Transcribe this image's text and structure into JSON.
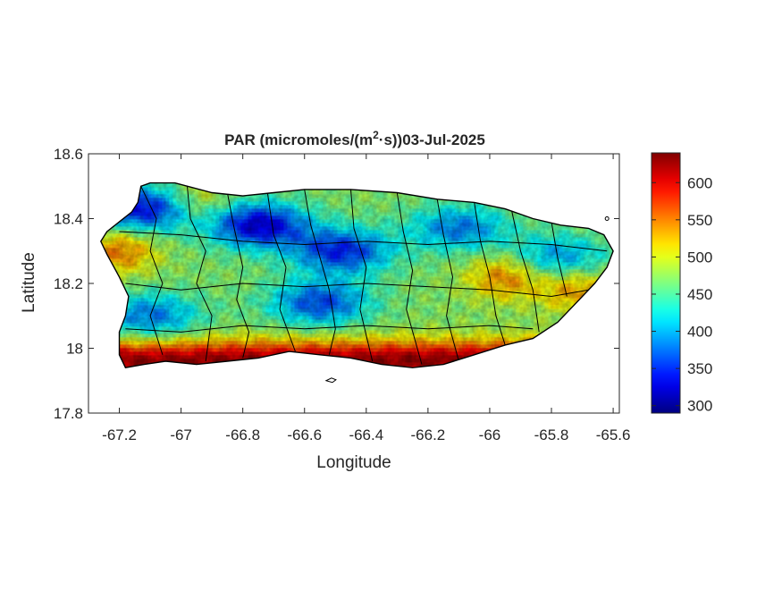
{
  "chart_data": {
    "type": "heatmap",
    "title": {
      "prefix": "PAR (micromoles/(m",
      "superscript": "2",
      "suffix": "·s))03-Jul-2025"
    },
    "xlabel": "Longitude",
    "ylabel": "Latitude",
    "xlim": [
      -67.3,
      -65.58
    ],
    "ylim": [
      17.8,
      18.6
    ],
    "xticks": [
      -67.2,
      -67,
      -66.8,
      -66.6,
      -66.4,
      -66.2,
      -66,
      -65.8,
      -65.6
    ],
    "xtick_labels": [
      "-67.2",
      "-67",
      "-66.8",
      "-66.6",
      "-66.4",
      "-66.2",
      "-66",
      "-65.8",
      "-65.6"
    ],
    "yticks": [
      17.8,
      18,
      18.2,
      18.4,
      18.6
    ],
    "ytick_labels": [
      "17.8",
      "18",
      "18.2",
      "18.4",
      "18.6"
    ],
    "colorbar": {
      "colormap": "jet",
      "range": [
        290,
        640
      ],
      "ticks": [
        300,
        350,
        400,
        450,
        500,
        550,
        600
      ],
      "tick_labels": [
        "300",
        "350",
        "400",
        "450",
        "500",
        "550",
        "600"
      ]
    },
    "grid": false,
    "island_outline_lonlat": [
      [
        -67.24,
        18.36
      ],
      [
        -67.2,
        18.39
      ],
      [
        -67.16,
        18.42
      ],
      [
        -67.14,
        18.45
      ],
      [
        -67.13,
        18.5
      ],
      [
        -67.1,
        18.51
      ],
      [
        -67.02,
        18.51
      ],
      [
        -66.9,
        18.48
      ],
      [
        -66.8,
        18.47
      ],
      [
        -66.7,
        18.48
      ],
      [
        -66.6,
        18.49
      ],
      [
        -66.45,
        18.49
      ],
      [
        -66.3,
        18.48
      ],
      [
        -66.17,
        18.46
      ],
      [
        -66.05,
        18.45
      ],
      [
        -65.95,
        18.43
      ],
      [
        -65.86,
        18.4
      ],
      [
        -65.77,
        18.38
      ],
      [
        -65.68,
        18.37
      ],
      [
        -65.63,
        18.35
      ],
      [
        -65.6,
        18.3
      ],
      [
        -65.62,
        18.25
      ],
      [
        -65.66,
        18.2
      ],
      [
        -65.72,
        18.14
      ],
      [
        -65.78,
        18.08
      ],
      [
        -65.86,
        18.03
      ],
      [
        -65.95,
        18.01
      ],
      [
        -66.05,
        17.98
      ],
      [
        -66.15,
        17.95
      ],
      [
        -66.25,
        17.94
      ],
      [
        -66.35,
        17.95
      ],
      [
        -66.45,
        17.97
      ],
      [
        -66.55,
        17.98
      ],
      [
        -66.65,
        17.99
      ],
      [
        -66.75,
        17.97
      ],
      [
        -66.85,
        17.96
      ],
      [
        -66.95,
        17.95
      ],
      [
        -67.05,
        17.96
      ],
      [
        -67.12,
        17.95
      ],
      [
        -67.18,
        17.94
      ],
      [
        -67.2,
        17.98
      ],
      [
        -67.2,
        18.05
      ],
      [
        -67.18,
        18.1
      ],
      [
        -67.17,
        18.16
      ],
      [
        -67.2,
        18.22
      ],
      [
        -67.24,
        18.29
      ],
      [
        -67.26,
        18.33
      ]
    ],
    "par_field": {
      "base": 470,
      "south_coast_peak": 630,
      "south_coast_lat": 17.96,
      "low_cores": [
        {
          "lon": -66.75,
          "lat": 18.38,
          "value": 320
        },
        {
          "lon": -66.48,
          "lat": 18.3,
          "value": 345
        },
        {
          "lon": -66.55,
          "lat": 18.14,
          "value": 360
        },
        {
          "lon": -66.1,
          "lat": 18.37,
          "value": 380
        },
        {
          "lon": -67.12,
          "lat": 18.43,
          "value": 330
        },
        {
          "lon": -67.1,
          "lat": 18.1,
          "value": 380
        },
        {
          "lon": -65.78,
          "lat": 18.28,
          "value": 390
        }
      ],
      "high_cores": [
        {
          "lon": -67.2,
          "lat": 18.3,
          "value": 550
        },
        {
          "lon": -65.95,
          "lat": 18.22,
          "value": 550
        },
        {
          "lon": -65.72,
          "lat": 18.18,
          "value": 540
        },
        {
          "lon": -66.95,
          "lat": 18.45,
          "value": 520
        }
      ]
    },
    "colors": {
      "axes_box": "#262626",
      "boundary": "#000000",
      "background": "#ffffff"
    }
  }
}
